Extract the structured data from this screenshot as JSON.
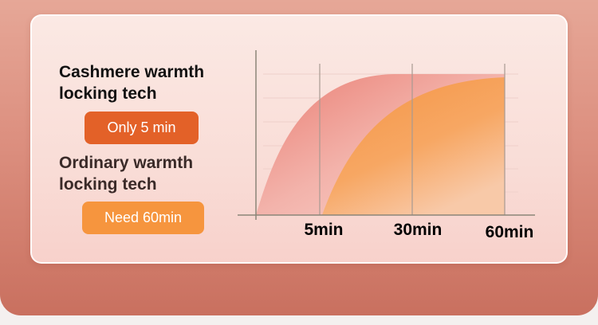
{
  "labels": {
    "cashmere": [
      "Cashmere warmth",
      "locking tech"
    ],
    "ordinary": [
      "Ordinary warmth",
      "locking tech"
    ],
    "cashmere_badge": "Only 5 min",
    "ordinary_badge": "Need 60min"
  },
  "colors": {
    "cashmere": "#e36128",
    "ordinary": "#f6953e",
    "cashmere_area": "#ec8a80",
    "ordinary_area": "#f69a4c"
  },
  "chart_data": {
    "type": "area",
    "x_tick_labels": [
      "5min",
      "30min",
      "60min"
    ],
    "grid": true,
    "series": [
      {
        "name": "Cashmere warmth locking tech",
        "description_shape": "rises steeply from 0, reaches maximum around 30min"
      },
      {
        "name": "Ordinary warmth locking tech",
        "description_shape": "starts rising at 5min, reaches maximum at 60min"
      }
    ]
  }
}
